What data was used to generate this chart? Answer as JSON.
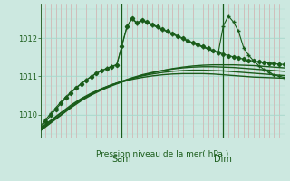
{
  "background_color": "#cce8e0",
  "grid_color_h": "#a8d8cc",
  "grid_color_v": "#d4a0a0",
  "axis_color": "#1a5c1a",
  "line_color": "#1a5c1a",
  "ylim": [
    1009.4,
    1012.9
  ],
  "yticks": [
    1010,
    1011,
    1012
  ],
  "xlim": [
    0,
    48
  ],
  "sam_x": 16,
  "dim_x": 36,
  "xlabel": "Pression niveau de la mer( hPa )",
  "smooth_lines": [
    {
      "x": [
        0,
        2,
        4,
        6,
        8,
        10,
        12,
        14,
        16,
        18,
        20,
        22,
        24,
        26,
        28,
        30,
        32,
        34,
        36,
        38,
        40,
        42,
        44,
        46,
        48
      ],
      "y": [
        1009.65,
        1009.85,
        1010.05,
        1010.25,
        1010.42,
        1010.56,
        1010.68,
        1010.78,
        1010.85,
        1010.92,
        1010.97,
        1011.01,
        1011.04,
        1011.06,
        1011.07,
        1011.07,
        1011.07,
        1011.06,
        1011.04,
        1011.02,
        1011.0,
        1010.98,
        1010.97,
        1010.96,
        1010.95
      ]
    },
    {
      "x": [
        0,
        2,
        4,
        6,
        8,
        10,
        12,
        14,
        16,
        18,
        20,
        22,
        24,
        26,
        28,
        30,
        32,
        34,
        36,
        38,
        40,
        42,
        44,
        46,
        48
      ],
      "y": [
        1009.62,
        1009.83,
        1010.04,
        1010.22,
        1010.4,
        1010.55,
        1010.67,
        1010.78,
        1010.87,
        1010.95,
        1011.01,
        1011.06,
        1011.1,
        1011.13,
        1011.15,
        1011.16,
        1011.16,
        1011.15,
        1011.14,
        1011.12,
        1011.1,
        1011.08,
        1011.06,
        1011.04,
        1011.02
      ]
    },
    {
      "x": [
        0,
        2,
        4,
        6,
        8,
        10,
        12,
        14,
        16,
        18,
        20,
        22,
        24,
        26,
        28,
        30,
        32,
        34,
        36,
        38,
        40,
        42,
        44,
        46,
        48
      ],
      "y": [
        1009.6,
        1009.8,
        1010.0,
        1010.2,
        1010.38,
        1010.53,
        1010.66,
        1010.77,
        1010.87,
        1010.96,
        1011.04,
        1011.1,
        1011.15,
        1011.19,
        1011.22,
        1011.24,
        1011.25,
        1011.25,
        1011.24,
        1011.23,
        1011.21,
        1011.19,
        1011.17,
        1011.15,
        1011.13
      ]
    },
    {
      "x": [
        0,
        2,
        4,
        6,
        8,
        10,
        12,
        14,
        16,
        18,
        20,
        22,
        24,
        26,
        28,
        30,
        32,
        34,
        36,
        38,
        40,
        42,
        44,
        46,
        48
      ],
      "y": [
        1009.58,
        1009.78,
        1009.98,
        1010.18,
        1010.36,
        1010.51,
        1010.64,
        1010.75,
        1010.85,
        1010.94,
        1011.02,
        1011.09,
        1011.15,
        1011.2,
        1011.24,
        1011.27,
        1011.29,
        1011.3,
        1011.3,
        1011.3,
        1011.29,
        1011.28,
        1011.26,
        1011.24,
        1011.22
      ]
    }
  ],
  "noisy_lines": [
    {
      "x": [
        0,
        1,
        2,
        3,
        4,
        5,
        6,
        7,
        8,
        9,
        10,
        11,
        12,
        13,
        14,
        15,
        16,
        17,
        18,
        19,
        20,
        21,
        22,
        23,
        24,
        25,
        26,
        27,
        28,
        29,
        30,
        31,
        32,
        33,
        34,
        35,
        36,
        37,
        38,
        39,
        40,
        41,
        42,
        43,
        44,
        45,
        46,
        47,
        48
      ],
      "y": [
        1009.65,
        1009.82,
        1009.98,
        1010.14,
        1010.29,
        1010.43,
        1010.57,
        1010.69,
        1010.8,
        1010.9,
        1010.99,
        1011.07,
        1011.14,
        1011.2,
        1011.25,
        1011.29,
        1011.8,
        1012.3,
        1012.52,
        1012.4,
        1012.48,
        1012.42,
        1012.36,
        1012.3,
        1012.24,
        1012.18,
        1012.12,
        1012.06,
        1012.0,
        1011.94,
        1011.88,
        1011.83,
        1011.78,
        1011.73,
        1011.68,
        1011.63,
        1011.58,
        1011.54,
        1011.51,
        1011.48,
        1011.45,
        1011.42,
        1011.4,
        1011.38,
        1011.36,
        1011.35,
        1011.33,
        1011.32,
        1011.31
      ],
      "marker": "D",
      "markersize": 2.2
    },
    {
      "x": [
        0,
        1,
        2,
        3,
        4,
        5,
        6,
        7,
        8,
        9,
        10,
        11,
        12,
        13,
        14,
        15,
        16,
        17,
        18,
        19,
        20,
        21,
        22,
        23,
        24,
        25,
        26,
        27,
        28,
        29,
        30,
        31,
        32,
        33,
        34,
        35,
        36,
        37,
        38,
        39,
        40,
        41,
        42,
        43,
        44,
        45,
        46,
        47,
        48
      ],
      "y": [
        1009.7,
        1009.87,
        1010.03,
        1010.18,
        1010.33,
        1010.47,
        1010.59,
        1010.71,
        1010.81,
        1010.91,
        1011.0,
        1011.08,
        1011.15,
        1011.21,
        1011.26,
        1011.31,
        1011.78,
        1012.28,
        1012.5,
        1012.38,
        1012.45,
        1012.4,
        1012.34,
        1012.28,
        1012.22,
        1012.16,
        1012.1,
        1012.04,
        1011.98,
        1011.92,
        1011.86,
        1011.81,
        1011.76,
        1011.71,
        1011.66,
        1011.61,
        1012.32,
        1012.58,
        1012.42,
        1012.18,
        1011.75,
        1011.55,
        1011.4,
        1011.28,
        1011.18,
        1011.1,
        1011.04,
        1011.0,
        1010.97
      ],
      "marker": "+",
      "markersize": 3.5
    }
  ]
}
